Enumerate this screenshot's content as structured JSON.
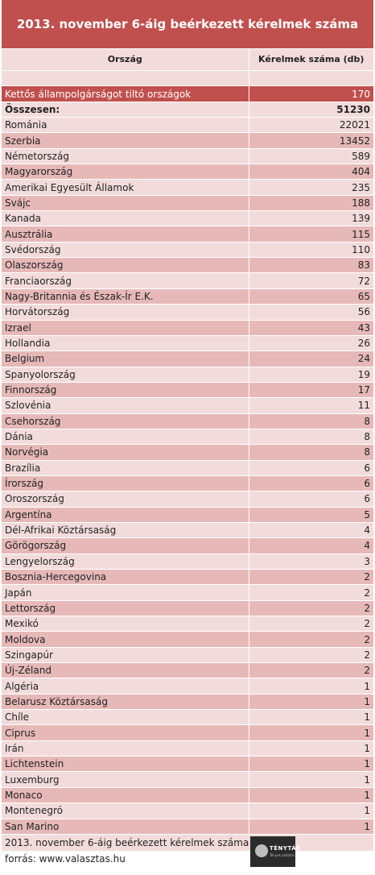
{
  "title": "2013. november 6-áig beérkezett kérelmek száma",
  "headers": {
    "country": "Ország",
    "count": "Kérelmek száma (db)"
  },
  "rows": [
    {
      "country": "",
      "count": "",
      "style": "blank"
    },
    {
      "country": "Kettős állampolgárságot tiltó országok",
      "count": "170",
      "style": "highlight"
    },
    {
      "country": "Összesen:",
      "count": "51230",
      "style": "total"
    },
    {
      "country": "Románia",
      "count": "22021",
      "style": "light"
    },
    {
      "country": "Szerbia",
      "count": "13452",
      "style": "dark"
    },
    {
      "country": "Németország",
      "count": "589",
      "style": "light"
    },
    {
      "country": "Magyarország",
      "count": "404",
      "style": "dark"
    },
    {
      "country": "Amerikai Egyesült Államok",
      "count": "235",
      "style": "light"
    },
    {
      "country": "Svájc",
      "count": "188",
      "style": "dark"
    },
    {
      "country": "Kanada",
      "count": "139",
      "style": "light"
    },
    {
      "country": "Ausztrália",
      "count": "115",
      "style": "dark"
    },
    {
      "country": "Svédország",
      "count": "110",
      "style": "light"
    },
    {
      "country": "Olaszország",
      "count": "83",
      "style": "dark"
    },
    {
      "country": "Franciaország",
      "count": "72",
      "style": "light"
    },
    {
      "country": "Nagy-Britannia és Észak-Ír E.K.",
      "count": "65",
      "style": "dark"
    },
    {
      "country": "Horvátország",
      "count": "56",
      "style": "light"
    },
    {
      "country": "Izrael",
      "count": "43",
      "style": "dark"
    },
    {
      "country": "Hollandia",
      "count": "26",
      "style": "light"
    },
    {
      "country": "Belgium",
      "count": "24",
      "style": "dark"
    },
    {
      "country": "Spanyolország",
      "count": "19",
      "style": "light"
    },
    {
      "country": "Finnország",
      "count": "17",
      "style": "dark"
    },
    {
      "country": "Szlovénia",
      "count": "11",
      "style": "light"
    },
    {
      "country": "Csehország",
      "count": "8",
      "style": "dark"
    },
    {
      "country": "Dánia",
      "count": "8",
      "style": "light"
    },
    {
      "country": "Norvégia",
      "count": "8",
      "style": "dark"
    },
    {
      "country": "Brazília",
      "count": "6",
      "style": "light"
    },
    {
      "country": "Írország",
      "count": "6",
      "style": "dark"
    },
    {
      "country": "Oroszország",
      "count": "6",
      "style": "light"
    },
    {
      "country": "Argentína",
      "count": "5",
      "style": "dark"
    },
    {
      "country": "Dél-Afrikai Köztársaság",
      "count": "4",
      "style": "light"
    },
    {
      "country": "Görögország",
      "count": "4",
      "style": "dark"
    },
    {
      "country": "Lengyelország",
      "count": "3",
      "style": "light"
    },
    {
      "country": "Bosznia-Hercegovina",
      "count": "2",
      "style": "dark"
    },
    {
      "country": "Japán",
      "count": "2",
      "style": "light"
    },
    {
      "country": "Lettország",
      "count": "2",
      "style": "dark"
    },
    {
      "country": "Mexikó",
      "count": "2",
      "style": "light"
    },
    {
      "country": "Moldova",
      "count": "2",
      "style": "dark"
    },
    {
      "country": "Szingapúr",
      "count": "2",
      "style": "light"
    },
    {
      "country": "Új-Zéland",
      "count": "2",
      "style": "dark"
    },
    {
      "country": "Algéria",
      "count": "1",
      "style": "light"
    },
    {
      "country": "Belarusz Köztársaság",
      "count": "1",
      "style": "dark"
    },
    {
      "country": "Chíle",
      "count": "1",
      "style": "light"
    },
    {
      "country": "Ciprus",
      "count": "1",
      "style": "dark"
    },
    {
      "country": "Irán",
      "count": "1",
      "style": "light"
    },
    {
      "country": "Lichtenstein",
      "count": "1",
      "style": "dark"
    },
    {
      "country": "Luxemburg",
      "count": "1",
      "style": "light"
    },
    {
      "country": "Monaco",
      "count": "1",
      "style": "dark"
    },
    {
      "country": "Montenegró",
      "count": "1",
      "style": "light"
    },
    {
      "country": "San Marino",
      "count": "1",
      "style": "dark"
    }
  ],
  "footer": {
    "caption": "2013. november 6-áig beérkezett kérelmek száma",
    "source": "forrás: www.valasztas.hu"
  },
  "logo": {
    "brand": "TÉNYTÁR",
    "tagline": "Tények politikai",
    "icon": "head-silhouette-icon"
  },
  "colors": {
    "header_red": "#c0504d",
    "row_dark": "#e6b9b8",
    "row_light": "#f2dcdb"
  }
}
